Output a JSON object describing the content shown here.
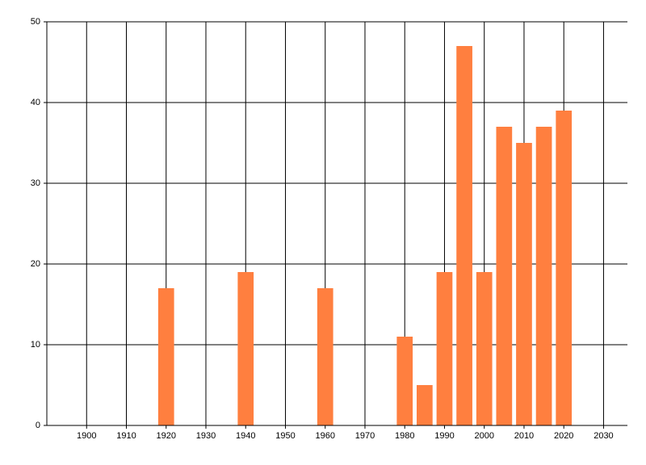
{
  "chart_data": {
    "type": "bar",
    "x": [
      1920,
      1940,
      1960,
      1980,
      1985,
      1990,
      1995,
      2000,
      2005,
      2010,
      2015,
      2020
    ],
    "values": [
      17,
      19,
      17,
      11,
      5,
      19,
      47,
      19,
      37,
      35,
      37,
      39
    ],
    "color": "#ff7f3f",
    "xlim": [
      1890,
      2036
    ],
    "xticks": [
      1900,
      1910,
      1920,
      1930,
      1940,
      1950,
      1960,
      1970,
      1980,
      1990,
      2000,
      2010,
      2020,
      2030
    ],
    "ylim": [
      0,
      50
    ],
    "yticks": [
      0,
      10,
      20,
      30,
      40,
      50
    ],
    "grid": true
  }
}
